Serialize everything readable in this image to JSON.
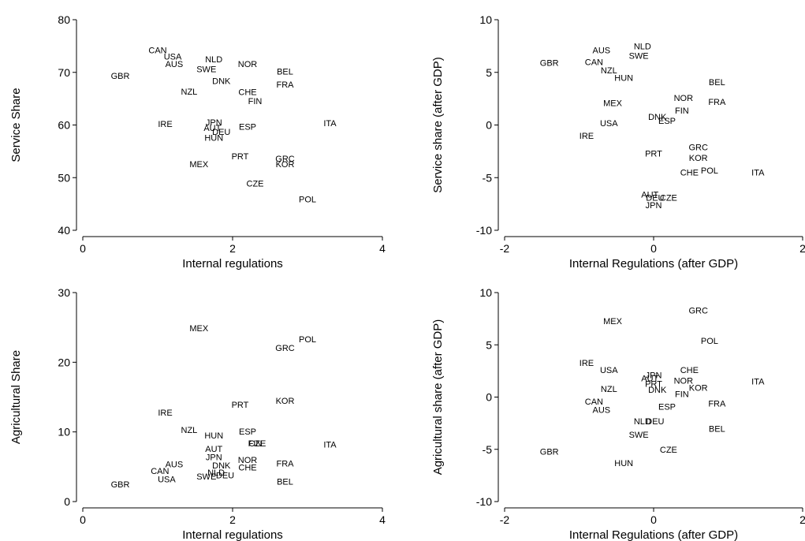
{
  "chart_data": [
    {
      "type": "scatter",
      "xlabel": "Internal regulations",
      "ylabel": "Service Share",
      "xlim": [
        0,
        4
      ],
      "ylim": [
        40,
        80
      ],
      "xticks": [
        0,
        2,
        4
      ],
      "yticks": [
        40,
        50,
        60,
        70,
        80
      ],
      "grid": false,
      "points": [
        {
          "label": "CAN",
          "x": 1.0,
          "y": 74.2
        },
        {
          "label": "USA",
          "x": 1.2,
          "y": 73.0
        },
        {
          "label": "AUS",
          "x": 1.22,
          "y": 71.6
        },
        {
          "label": "GBR",
          "x": 0.5,
          "y": 69.4
        },
        {
          "label": "NLD",
          "x": 1.75,
          "y": 72.5
        },
        {
          "label": "SWE",
          "x": 1.65,
          "y": 70.6
        },
        {
          "label": "NOR",
          "x": 2.2,
          "y": 71.6
        },
        {
          "label": "BEL",
          "x": 2.7,
          "y": 70.2
        },
        {
          "label": "DNK",
          "x": 1.85,
          "y": 68.4
        },
        {
          "label": "FRA",
          "x": 2.7,
          "y": 67.7
        },
        {
          "label": "NZL",
          "x": 1.42,
          "y": 66.4
        },
        {
          "label": "CHE",
          "x": 2.2,
          "y": 66.3
        },
        {
          "label": "FIN",
          "x": 2.3,
          "y": 64.6
        },
        {
          "label": "IRE",
          "x": 1.1,
          "y": 60.2
        },
        {
          "label": "JPN",
          "x": 1.75,
          "y": 60.5
        },
        {
          "label": "AUT",
          "x": 1.73,
          "y": 59.5
        },
        {
          "label": "ESP",
          "x": 2.2,
          "y": 59.7
        },
        {
          "label": "ITA",
          "x": 3.3,
          "y": 60.4
        },
        {
          "label": "DEU",
          "x": 1.85,
          "y": 58.7
        },
        {
          "label": "HUN",
          "x": 1.75,
          "y": 57.6
        },
        {
          "label": "PRT",
          "x": 2.1,
          "y": 54.1
        },
        {
          "label": "GRC",
          "x": 2.7,
          "y": 53.6
        },
        {
          "label": "KOR",
          "x": 2.7,
          "y": 52.6
        },
        {
          "label": "MEX",
          "x": 1.55,
          "y": 52.6
        },
        {
          "label": "CZE",
          "x": 2.3,
          "y": 48.9
        },
        {
          "label": "POL",
          "x": 3.0,
          "y": 45.9
        }
      ]
    },
    {
      "type": "scatter",
      "xlabel": "Internal Regulations (after GDP)",
      "ylabel": "Service share (after GDP)",
      "xlim": [
        -2,
        2
      ],
      "ylim": [
        -10,
        10
      ],
      "xticks": [
        -2,
        0,
        2
      ],
      "yticks": [
        -10,
        -5,
        0,
        5,
        10
      ],
      "grid": false,
      "points": [
        {
          "label": "NLD",
          "x": -0.15,
          "y": 7.5
        },
        {
          "label": "AUS",
          "x": -0.7,
          "y": 7.1
        },
        {
          "label": "SWE",
          "x": -0.2,
          "y": 6.6
        },
        {
          "label": "GBR",
          "x": -1.4,
          "y": 5.9
        },
        {
          "label": "CAN",
          "x": -0.8,
          "y": 6.0
        },
        {
          "label": "NZL",
          "x": -0.6,
          "y": 5.2
        },
        {
          "label": "HUN",
          "x": -0.4,
          "y": 4.5
        },
        {
          "label": "BEL",
          "x": 0.85,
          "y": 4.1
        },
        {
          "label": "NOR",
          "x": 0.4,
          "y": 2.6
        },
        {
          "label": "FRA",
          "x": 0.85,
          "y": 2.2
        },
        {
          "label": "MEX",
          "x": -0.55,
          "y": 2.1
        },
        {
          "label": "FIN",
          "x": 0.38,
          "y": 1.4
        },
        {
          "label": "DNK",
          "x": 0.05,
          "y": 0.8
        },
        {
          "label": "ESP",
          "x": 0.18,
          "y": 0.4
        },
        {
          "label": "USA",
          "x": -0.6,
          "y": 0.2
        },
        {
          "label": "IRE",
          "x": -0.9,
          "y": -1.0
        },
        {
          "label": "PRT",
          "x": 0.0,
          "y": -2.7
        },
        {
          "label": "GRC",
          "x": 0.6,
          "y": -2.1
        },
        {
          "label": "KOR",
          "x": 0.6,
          "y": -3.1
        },
        {
          "label": "CHE",
          "x": 0.48,
          "y": -4.5
        },
        {
          "label": "POL",
          "x": 0.75,
          "y": -4.3
        },
        {
          "label": "ITA",
          "x": 1.4,
          "y": -4.5
        },
        {
          "label": "AUT",
          "x": -0.05,
          "y": -6.6
        },
        {
          "label": "DEU",
          "x": 0.02,
          "y": -6.9
        },
        {
          "label": "CZE",
          "x": 0.2,
          "y": -6.9
        },
        {
          "label": "JPN",
          "x": 0.0,
          "y": -7.6
        }
      ]
    },
    {
      "type": "scatter",
      "xlabel": "Internal regulations",
      "ylabel": "Agricultural Share",
      "xlim": [
        0,
        4
      ],
      "ylim": [
        0,
        30
      ],
      "xticks": [
        0,
        2,
        4
      ],
      "yticks": [
        0,
        10,
        20,
        30
      ],
      "grid": false,
      "points": [
        {
          "label": "MEX",
          "x": 1.55,
          "y": 24.9
        },
        {
          "label": "POL",
          "x": 3.0,
          "y": 23.3
        },
        {
          "label": "GRC",
          "x": 2.7,
          "y": 22.1
        },
        {
          "label": "KOR",
          "x": 2.7,
          "y": 14.5
        },
        {
          "label": "PRT",
          "x": 2.1,
          "y": 13.9
        },
        {
          "label": "IRE",
          "x": 1.1,
          "y": 12.8
        },
        {
          "label": "NZL",
          "x": 1.42,
          "y": 10.3
        },
        {
          "label": "ESP",
          "x": 2.2,
          "y": 10.1
        },
        {
          "label": "HUN",
          "x": 1.75,
          "y": 9.5
        },
        {
          "label": "FIN",
          "x": 2.3,
          "y": 8.4
        },
        {
          "label": "CZE",
          "x": 2.33,
          "y": 8.4
        },
        {
          "label": "ITA",
          "x": 3.3,
          "y": 8.2
        },
        {
          "label": "AUT",
          "x": 1.75,
          "y": 7.6
        },
        {
          "label": "JPN",
          "x": 1.75,
          "y": 6.4
        },
        {
          "label": "NOR",
          "x": 2.2,
          "y": 6.0
        },
        {
          "label": "FRA",
          "x": 2.7,
          "y": 5.5
        },
        {
          "label": "AUS",
          "x": 1.22,
          "y": 5.4
        },
        {
          "label": "DNK",
          "x": 1.85,
          "y": 5.2
        },
        {
          "label": "CHE",
          "x": 2.2,
          "y": 4.9
        },
        {
          "label": "CAN",
          "x": 1.03,
          "y": 4.4
        },
        {
          "label": "NLD",
          "x": 1.78,
          "y": 4.2
        },
        {
          "label": "SWE",
          "x": 1.65,
          "y": 3.6
        },
        {
          "label": "DEU",
          "x": 1.9,
          "y": 3.8
        },
        {
          "label": "USA",
          "x": 1.12,
          "y": 3.2
        },
        {
          "label": "BEL",
          "x": 2.7,
          "y": 2.9
        },
        {
          "label": "GBR",
          "x": 0.5,
          "y": 2.5
        }
      ]
    },
    {
      "type": "scatter",
      "xlabel": "Internal Regulations (after GDP)",
      "ylabel": "Agricultural share (after GDP)",
      "xlim": [
        -2,
        2
      ],
      "ylim": [
        -10,
        10
      ],
      "xticks": [
        -2,
        0,
        2
      ],
      "yticks": [
        -10,
        -5,
        0,
        5,
        10
      ],
      "grid": false,
      "points": [
        {
          "label": "GRC",
          "x": 0.6,
          "y": 8.3
        },
        {
          "label": "MEX",
          "x": -0.55,
          "y": 7.3
        },
        {
          "label": "POL",
          "x": 0.75,
          "y": 5.4
        },
        {
          "label": "IRE",
          "x": -0.9,
          "y": 3.3
        },
        {
          "label": "USA",
          "x": -0.6,
          "y": 2.6
        },
        {
          "label": "CHE",
          "x": 0.48,
          "y": 2.6
        },
        {
          "label": "JPN",
          "x": 0.0,
          "y": 2.1
        },
        {
          "label": "AUT",
          "x": -0.05,
          "y": 1.8
        },
        {
          "label": "NOR",
          "x": 0.4,
          "y": 1.6
        },
        {
          "label": "ITA",
          "x": 1.4,
          "y": 1.5
        },
        {
          "label": "PRT",
          "x": 0.0,
          "y": 1.3
        },
        {
          "label": "NZL",
          "x": -0.6,
          "y": 0.8
        },
        {
          "label": "DNK",
          "x": 0.05,
          "y": 0.7
        },
        {
          "label": "KOR",
          "x": 0.6,
          "y": 0.9
        },
        {
          "label": "FIN",
          "x": 0.38,
          "y": 0.3
        },
        {
          "label": "CAN",
          "x": -0.8,
          "y": -0.4
        },
        {
          "label": "FRA",
          "x": 0.85,
          "y": -0.6
        },
        {
          "label": "ESP",
          "x": 0.18,
          "y": -0.9
        },
        {
          "label": "AUS",
          "x": -0.7,
          "y": -1.2
        },
        {
          "label": "NLD",
          "x": -0.15,
          "y": -2.3
        },
        {
          "label": "DEU",
          "x": 0.02,
          "y": -2.3
        },
        {
          "label": "BEL",
          "x": 0.85,
          "y": -3.0
        },
        {
          "label": "SWE",
          "x": -0.2,
          "y": -3.6
        },
        {
          "label": "GBR",
          "x": -1.4,
          "y": -5.2
        },
        {
          "label": "CZE",
          "x": 0.2,
          "y": -5.0
        },
        {
          "label": "HUN",
          "x": -0.4,
          "y": -6.3
        }
      ]
    }
  ]
}
